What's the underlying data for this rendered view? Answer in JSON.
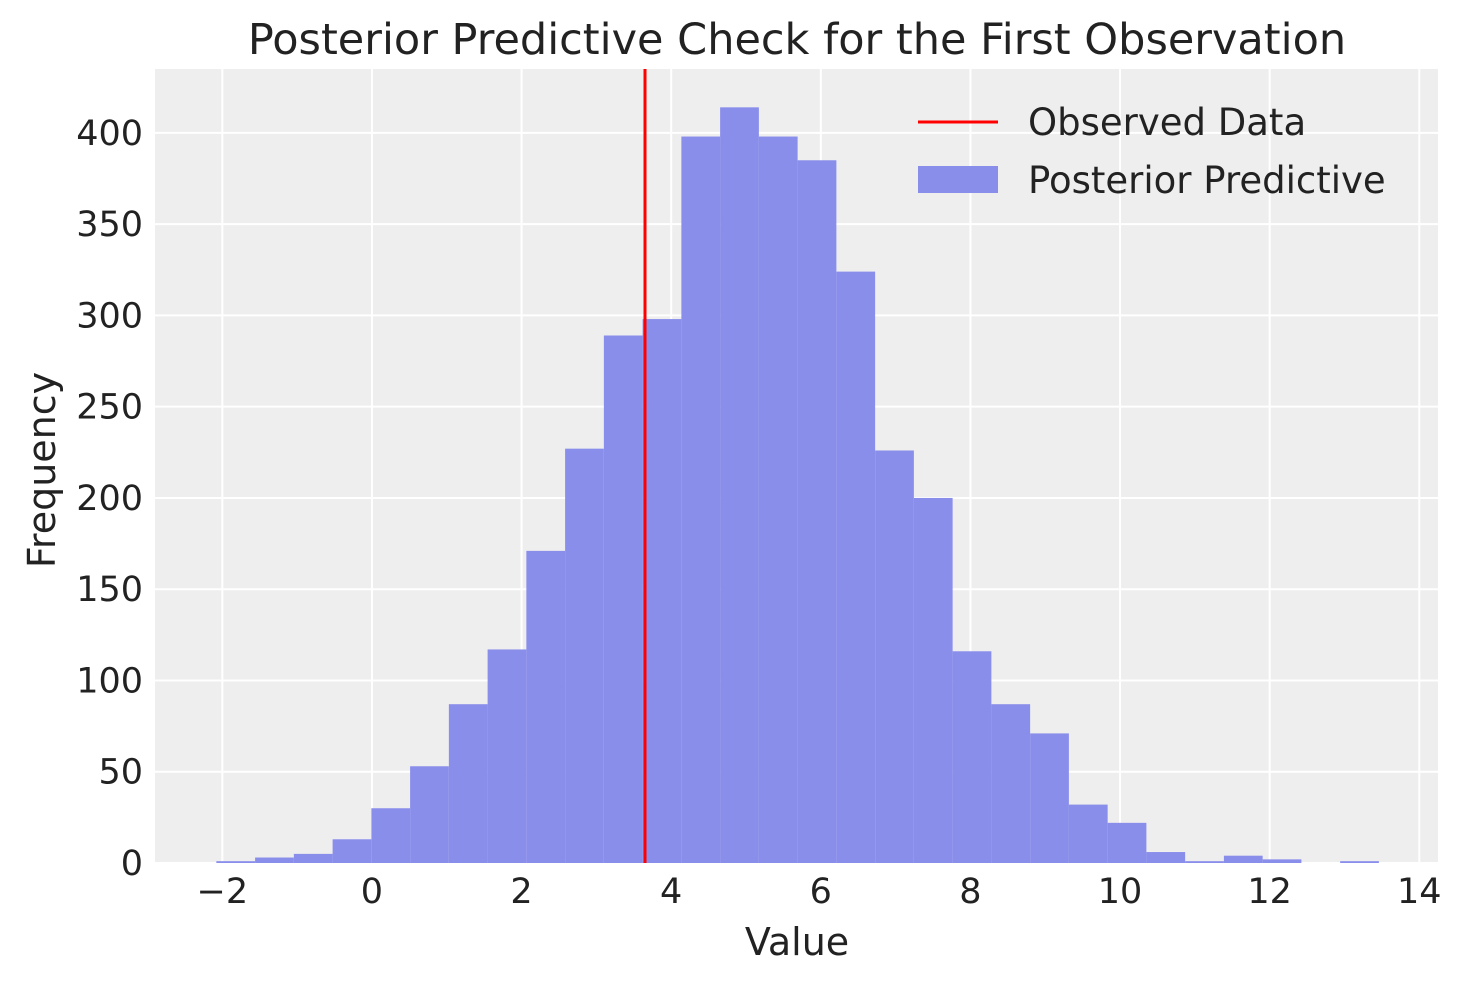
{
  "chart_data": {
    "type": "bar",
    "title": "Posterior Predictive Check for the First Observation",
    "xlabel": "Value",
    "ylabel": "Frequency",
    "xlim": [
      -2.9,
      14.25
    ],
    "ylim": [
      0,
      435
    ],
    "xticks": [
      -2,
      0,
      2,
      4,
      6,
      8,
      10,
      12,
      14
    ],
    "yticks": [
      0,
      50,
      100,
      150,
      200,
      250,
      300,
      350,
      400
    ],
    "xtick_labels": [
      "−2",
      "0",
      "2",
      "4",
      "6",
      "8",
      "10",
      "12",
      "14"
    ],
    "ytick_labels": [
      "0",
      "50",
      "100",
      "150",
      "200",
      "250",
      "300",
      "350",
      "400"
    ],
    "grid": true,
    "legend_position": "top-right",
    "colors": {
      "background": "#eeeeee",
      "grid": "#ffffff",
      "bars": "#8a8eeb",
      "observed_line": "#ff0000"
    },
    "observed_value": 3.65,
    "series": [
      {
        "name": "Posterior Predictive",
        "bin_start": -2.08,
        "bin_width": 0.518,
        "values": [
          1,
          3,
          5,
          13,
          30,
          53,
          87,
          117,
          171,
          227,
          289,
          298,
          398,
          414,
          398,
          385,
          324,
          226,
          200,
          116,
          87,
          71,
          32,
          22,
          6,
          1,
          4,
          2,
          0,
          1
        ]
      }
    ],
    "legend": [
      {
        "name": "Observed Data",
        "kind": "line"
      },
      {
        "name": "Posterior Predictive",
        "kind": "patch"
      }
    ]
  }
}
